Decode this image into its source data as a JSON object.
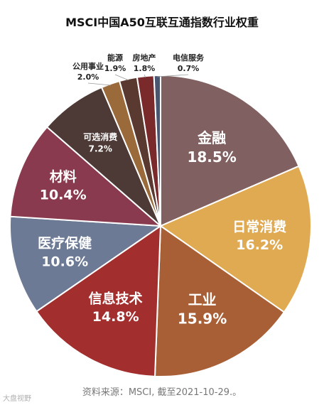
{
  "chart_data": {
    "type": "pie",
    "title": "MSCI中国A50互联互通指数行业权重",
    "start_angle_deg": 0,
    "direction": "clockwise",
    "slices": [
      {
        "label": "金融",
        "value_label": "18.5%",
        "value": 18.5,
        "color": "#806060"
      },
      {
        "label": "日常消费",
        "value_label": "16.2%",
        "value": 16.2,
        "color": "#e0aa52"
      },
      {
        "label": "工业",
        "value_label": "15.9%",
        "value": 15.9,
        "color": "#a85f35"
      },
      {
        "label": "信息技术",
        "value_label": "14.8%",
        "value": 14.8,
        "color": "#a22e2e"
      },
      {
        "label": "医疗保健",
        "value_label": "10.6%",
        "value": 10.6,
        "color": "#6c7a95"
      },
      {
        "label": "材料",
        "value_label": "10.4%",
        "value": 10.4,
        "color": "#8a3a4e"
      },
      {
        "label": "可选消费",
        "value_label": "7.2%",
        "value": 7.2,
        "color": "#4d3a36"
      },
      {
        "label": "公用事业",
        "value_label": "2.0%",
        "value": 2.0,
        "color": "#9a6a3a"
      },
      {
        "label": "能源",
        "value_label": "1.9%",
        "value": 1.9,
        "color": "#5a3a30"
      },
      {
        "label": "房地产",
        "value_label": "1.8%",
        "value": 1.8,
        "color": "#7a2a2a"
      },
      {
        "label": "电信服务",
        "value_label": "0.7%",
        "value": 0.7,
        "color": "#4a5570"
      }
    ]
  },
  "source_note": "资料来源：MSCI, 截至2021-10-29.。",
  "watermark": "大盘视野"
}
